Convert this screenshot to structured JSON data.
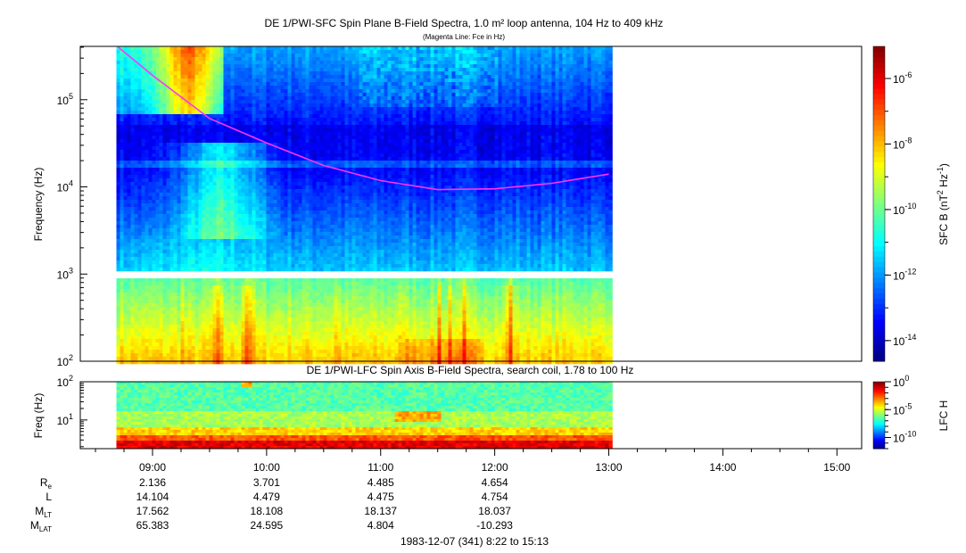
{
  "chart_data": [
    {
      "type": "heatmap",
      "title": "DE 1/PWI-SFC  Spin Plane B-Field Spectra, 1.0 m² loop antenna, 104 Hz to 409 kHz",
      "subtitle": "(Magenta Line: Fce in Hz)",
      "ylabel": "Frequency (Hz)",
      "yscale": "log",
      "ylim": [
        100,
        409000
      ],
      "yticks": [
        {
          "base": "10",
          "exp": "2"
        },
        {
          "base": "10",
          "exp": "3"
        },
        {
          "base": "10",
          "exp": "4"
        },
        {
          "base": "10",
          "exp": "5"
        }
      ],
      "data_time_range": [
        "08:41",
        "13:00"
      ],
      "colorbar": {
        "label": "SFC B (nT",
        "label_sup1": "2",
        "label_mid": " Hz",
        "label_sup2": "-1",
        "label_end": ")",
        "scale": "log",
        "range": [
          2.51e-15,
          1e-05
        ],
        "ticks": [
          {
            "base": "10",
            "exp": "-6"
          },
          {
            "base": "10",
            "exp": "-8"
          },
          {
            "base": "10",
            "exp": "-10"
          },
          {
            "base": "10",
            "exp": "-12"
          },
          {
            "base": "10",
            "exp": "-14"
          }
        ],
        "colormap": "jet"
      },
      "fce_line": {
        "color": "#ff33ff",
        "points": [
          {
            "t": "08:42",
            "f": 400000
          },
          {
            "t": "09:00",
            "f": 190000
          },
          {
            "t": "09:30",
            "f": 61000
          },
          {
            "t": "10:00",
            "f": 32000
          },
          {
            "t": "10:30",
            "f": 17600
          },
          {
            "t": "11:00",
            "f": 11800
          },
          {
            "t": "11:30",
            "f": 9300
          },
          {
            "t": "12:00",
            "f": 9500
          },
          {
            "t": "12:30",
            "f": 11000
          },
          {
            "t": "13:00",
            "f": 14000
          }
        ]
      }
    },
    {
      "type": "heatmap",
      "title": "DE 1/PWI-LFC  Spin Axis B-Field Spectra, search coil, 1.78 to 100 Hz",
      "ylabel": "Freq (Hz)",
      "yscale": "log",
      "ylim": [
        1.78,
        100
      ],
      "yticks": [
        {
          "base": "10",
          "exp": "1"
        },
        {
          "base": "10",
          "exp": "2"
        }
      ],
      "data_time_range": [
        "08:41",
        "13:00"
      ],
      "colorbar": {
        "label": "LFC H",
        "scale": "log",
        "range": [
          1e-12,
          1
        ],
        "ticks": [
          {
            "base": "10",
            "exp": "0"
          },
          {
            "base": "10",
            "exp": "-5"
          },
          {
            "base": "10",
            "exp": "-10"
          }
        ],
        "colormap": "jet"
      }
    }
  ],
  "time_axis": {
    "range": [
      "08:22",
      "15:13"
    ],
    "ticks": [
      "09:00",
      "10:00",
      "11:00",
      "12:00",
      "13:00",
      "14:00",
      "15:00"
    ]
  },
  "ephemeris": {
    "rows": [
      {
        "label": "R",
        "sub": "e",
        "values": [
          "2.136",
          "3.701",
          "4.485",
          "4.654"
        ]
      },
      {
        "label": "L",
        "sub": "",
        "values": [
          "14.104",
          "4.479",
          "4.475",
          "4.754"
        ]
      },
      {
        "label": "M",
        "sub": "LT",
        "values": [
          "17.562",
          "18.108",
          "18.137",
          "18.037"
        ]
      },
      {
        "label": "M",
        "sub": "LAT",
        "values": [
          "65.383",
          "24.595",
          "4.804",
          "-10.293"
        ]
      }
    ]
  },
  "date_range": "1983-12-07 (341) 8:22 to 15:13"
}
